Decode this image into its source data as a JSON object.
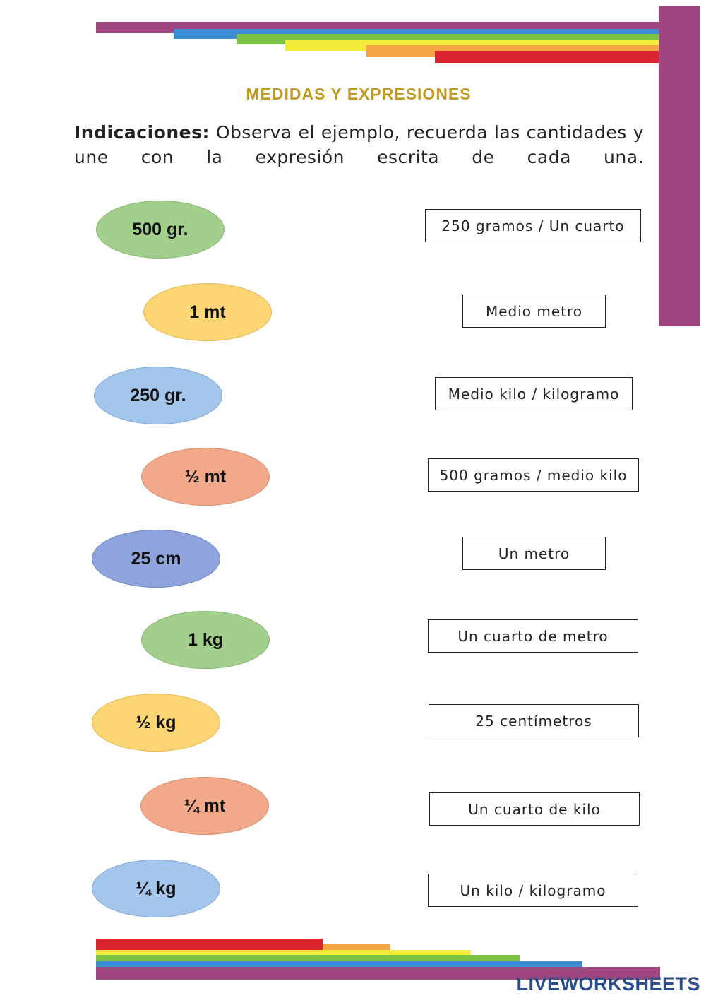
{
  "header": {
    "title": "MEDIDAS Y EXPRESIONES"
  },
  "instructions": {
    "label": "Indicaciones:",
    "text": "Observa el ejemplo, recuerda las cantidades y une con la expresión escrita de cada una."
  },
  "quantities": [
    "500 gr.",
    "1 mt",
    "250 gr.",
    "½ mt",
    "25 cm",
    "1 kg",
    "½ kg",
    "¼ mt",
    "¼ kg"
  ],
  "expressions": [
    "250 gramos / Un cuarto",
    "Medio metro",
    "Medio kilo / kilogramo",
    "500 gramos / medio kilo",
    "Un metro",
    "Un cuarto de metro",
    "25 centímetros",
    "Un cuarto de kilo",
    "Un kilo / kilogramo"
  ],
  "footer": {
    "brand": "LIVEWORKSHEETS"
  }
}
